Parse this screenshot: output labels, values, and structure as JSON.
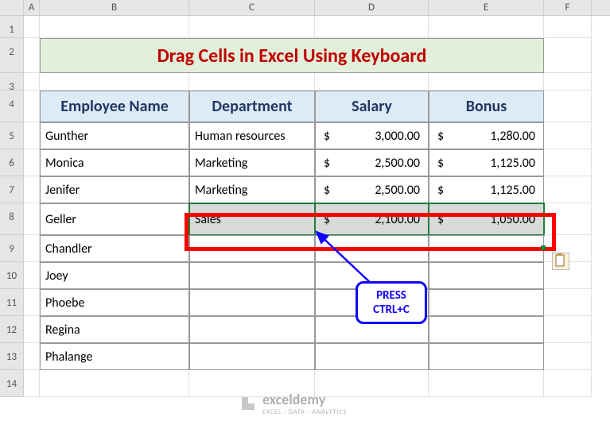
{
  "columns": [
    "A",
    "B",
    "C",
    "D",
    "E",
    "F"
  ],
  "col_widths": {
    "A": 20,
    "B": 188,
    "C": 158,
    "D": 143,
    "E": 145,
    "F": 60
  },
  "rows": [
    "1",
    "2",
    "3",
    "4",
    "5",
    "6",
    "7",
    "8",
    "9",
    "10",
    "11",
    "12",
    "13",
    "14"
  ],
  "title": "Drag Cells in Excel Using Keyboard",
  "title_color": "#c00000",
  "title_bg": "#e2efda",
  "headers": {
    "employee": "Employee Name",
    "department": "Department",
    "salary": "Salary",
    "bonus": "Bonus"
  },
  "header_bg": "#ddebf7",
  "header_color": "#203864",
  "data": [
    {
      "name": "Gunther",
      "dept": "Human resources",
      "salary": "3,000.00",
      "bonus": "1,280.00"
    },
    {
      "name": "Monica",
      "dept": "Marketing",
      "salary": "2,500.00",
      "bonus": "1,125.00"
    },
    {
      "name": "Jenifer",
      "dept": "Marketing",
      "salary": "2,500.00",
      "bonus": "1,125.00"
    },
    {
      "name": "Geller",
      "dept": "Sales",
      "salary": "2,100.00",
      "bonus": "1,050.00"
    },
    {
      "name": "Chandler",
      "dept": "",
      "salary": "",
      "bonus": ""
    },
    {
      "name": "Joey",
      "dept": "",
      "salary": "",
      "bonus": ""
    },
    {
      "name": "Phoebe",
      "dept": "",
      "salary": "",
      "bonus": ""
    },
    {
      "name": "Regina",
      "dept": "",
      "salary": "",
      "bonus": ""
    },
    {
      "name": "Phalange",
      "dept": "",
      "salary": "",
      "bonus": ""
    }
  ],
  "currency_symbol": "$",
  "selected_row_index": 3,
  "selection_bg": "#d9d9d9",
  "selection_border": "#1a7f37",
  "callout_text": "PRESS CTRL+C",
  "callout_color": "#1200ff",
  "redbox_color": "#ff0000",
  "watermark": {
    "brand": "exceldemy",
    "tagline": "EXCEL · DATA · ANALYTICS"
  }
}
